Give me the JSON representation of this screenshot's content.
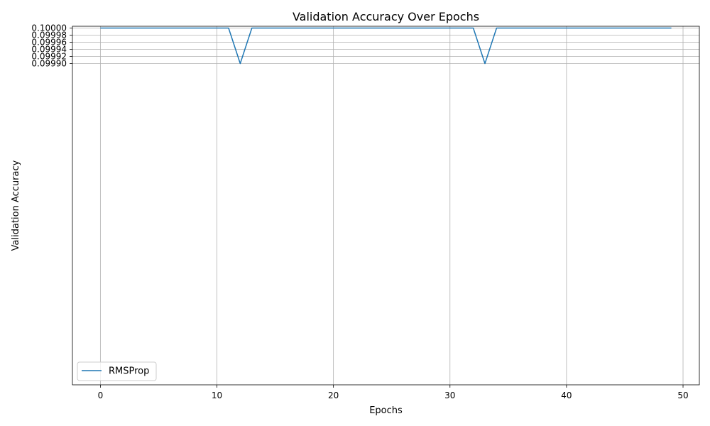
{
  "chart_data": {
    "type": "line",
    "title": "Validation Accuracy Over Epochs",
    "xlabel": "Epochs",
    "ylabel": "Validation Accuracy",
    "xlim": [
      -2.4,
      51.4
    ],
    "ylim": [
      0.098995,
      0.100005
    ],
    "xticks": [
      0,
      10,
      20,
      30,
      40,
      50
    ],
    "xtick_labels": [
      "0",
      "10",
      "20",
      "30",
      "40",
      "50"
    ],
    "yticks": [
      0.0999,
      0.09992,
      0.09994,
      0.09996,
      0.09998,
      0.1
    ],
    "ytick_labels": [
      "0.09990",
      "0.09992",
      "0.09994",
      "0.09996",
      "0.09998",
      "0.10000"
    ],
    "grid": true,
    "legend_position": "lower-left",
    "series": [
      {
        "name": "RMSProp",
        "color": "#1f77b4",
        "x": [
          0,
          1,
          2,
          3,
          4,
          5,
          6,
          7,
          8,
          9,
          10,
          11,
          12,
          13,
          14,
          15,
          16,
          17,
          18,
          19,
          20,
          21,
          22,
          23,
          24,
          25,
          26,
          27,
          28,
          29,
          30,
          31,
          32,
          33,
          34,
          35,
          36,
          37,
          38,
          39,
          40,
          41,
          42,
          43,
          44,
          45,
          46,
          47,
          48,
          49
        ],
        "y": [
          0.1,
          0.1,
          0.1,
          0.1,
          0.1,
          0.1,
          0.1,
          0.1,
          0.1,
          0.1,
          0.1,
          0.1,
          0.0999,
          0.1,
          0.1,
          0.1,
          0.1,
          0.1,
          0.1,
          0.1,
          0.1,
          0.1,
          0.1,
          0.1,
          0.1,
          0.1,
          0.1,
          0.1,
          0.1,
          0.1,
          0.1,
          0.1,
          0.1,
          0.0999,
          0.1,
          0.1,
          0.1,
          0.1,
          0.1,
          0.1,
          0.1,
          0.1,
          0.1,
          0.1,
          0.1,
          0.1,
          0.1,
          0.1,
          0.1,
          0.1
        ]
      }
    ]
  }
}
